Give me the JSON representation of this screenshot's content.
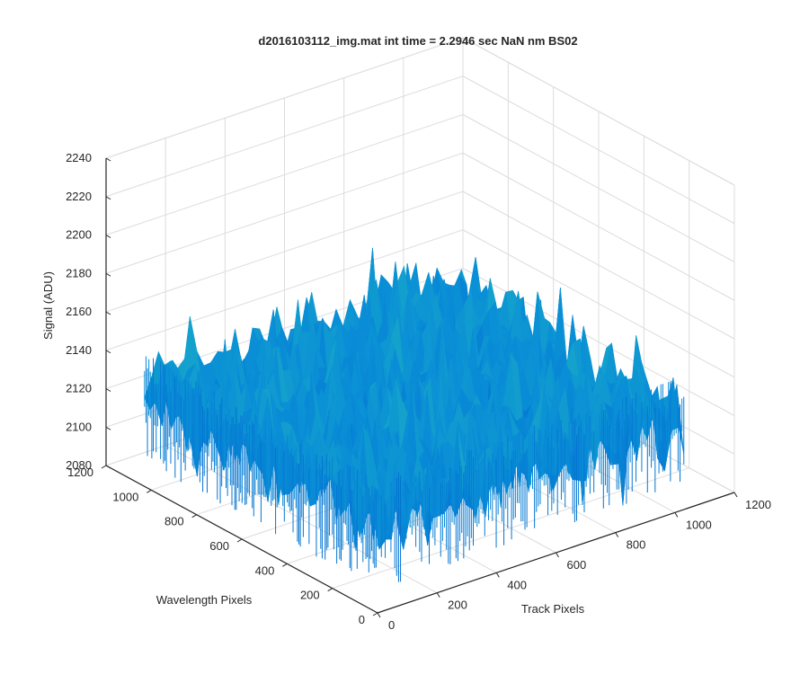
{
  "chart_data": {
    "type": "surface3d",
    "title": "d2016103112_img.mat int time = 2.2946 sec  NaN nm BS02",
    "xlabel": "Track Pixels",
    "ylabel": "Wavelength Pixels",
    "zlabel": "Signal (ADU)",
    "xlim": [
      0,
      1200
    ],
    "ylim": [
      0,
      1200
    ],
    "zlim": [
      2080,
      2240
    ],
    "x_ticks": [
      0,
      200,
      400,
      600,
      800,
      1000,
      1200
    ],
    "y_ticks": [
      0,
      200,
      400,
      600,
      800,
      1000,
      1200
    ],
    "z_ticks": [
      2080,
      2100,
      2120,
      2140,
      2160,
      2180,
      2200,
      2220,
      2240
    ],
    "data_extent": {
      "x": [
        0,
        1030
      ],
      "y": [
        0,
        1030
      ]
    },
    "surface": {
      "mean_signal": 2130,
      "noise_amplitude": 12,
      "min_signal": 2085,
      "max_signal": 2200,
      "colormap": "parula"
    },
    "grid": true,
    "colors": {
      "axis": "#262626",
      "grid": "#dcdcdc",
      "surface_low": "#0072d9",
      "surface_mid": "#1aa7c8",
      "surface_high": "#b8c83a"
    }
  }
}
